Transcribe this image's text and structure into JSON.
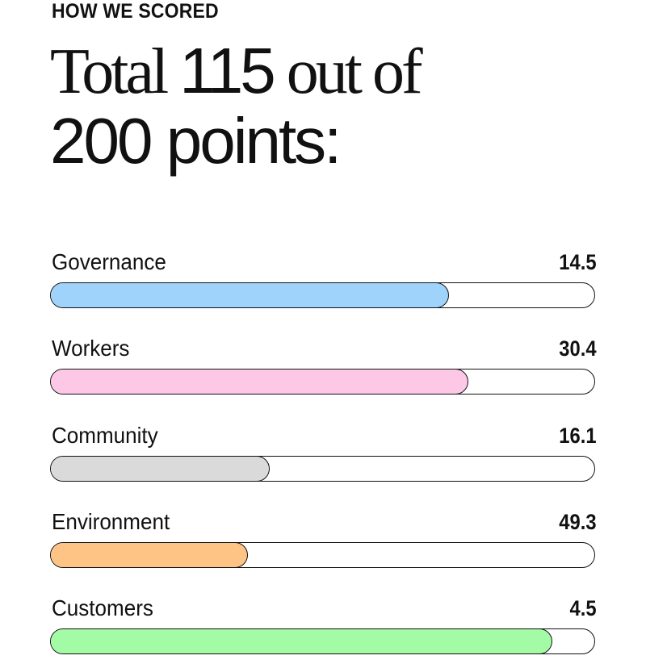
{
  "header": {
    "eyebrow": "HOW WE SCORED",
    "headline_total_word": "Total",
    "headline_total_value": "115",
    "headline_out_of": "out of",
    "headline_points": "200 points:"
  },
  "chart_data": {
    "type": "bar",
    "orientation": "horizontal",
    "title": "",
    "categories": [
      "Governance",
      "Workers",
      "Community",
      "Environment",
      "Customers"
    ],
    "values": [
      14.5,
      30.4,
      16.1,
      49.3,
      4.5
    ],
    "value_labels": [
      "14.5",
      "30.4",
      "16.1",
      "49.3",
      "4.5"
    ],
    "fill_fraction": [
      0.73,
      0.765,
      0.4,
      0.36,
      0.92
    ],
    "colors": [
      "#9fd3fb",
      "#fcc8e6",
      "#dadada",
      "#fec486",
      "#a4fba6"
    ],
    "grid": false,
    "legend": "none"
  }
}
